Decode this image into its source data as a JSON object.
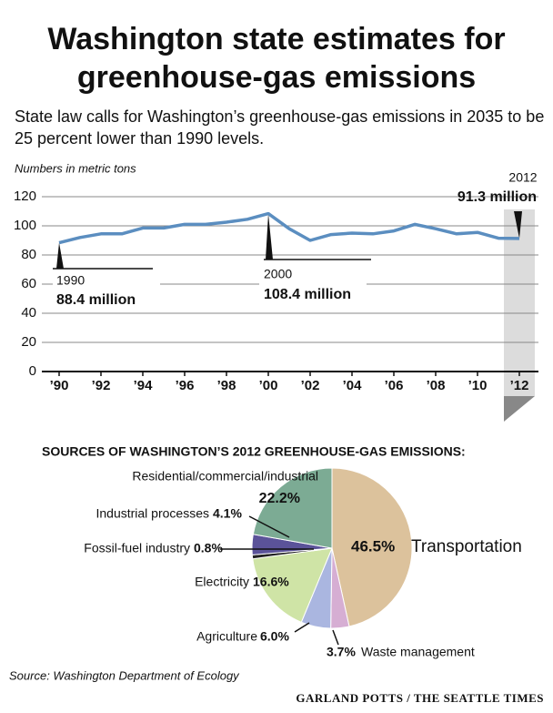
{
  "title": "Washington state estimates for greenhouse-gas emissions",
  "subtitle": "State law calls for Washington’s greenhouse-gas emissions in 2035 to be 25 percent lower than 1990 levels.",
  "source": "Source: Washington Department of Ecology",
  "credit": "GARLAND POTTS / THE SEATTLE TIMES",
  "chart_data": [
    {
      "type": "line",
      "y_axis_label": "Numbers in metric tons",
      "x": [
        1990,
        1991,
        1992,
        1993,
        1994,
        1995,
        1996,
        1997,
        1998,
        1999,
        2000,
        2001,
        2002,
        2003,
        2004,
        2005,
        2006,
        2007,
        2008,
        2009,
        2010,
        2011,
        2012
      ],
      "values": [
        88.4,
        92,
        94.5,
        94.5,
        98.5,
        98.5,
        101,
        101,
        102.5,
        104.5,
        108.4,
        98,
        90,
        94,
        95,
        94.5,
        96.5,
        101,
        98,
        94.5,
        95.5,
        91.5,
        91.3
      ],
      "color": "#5b8ec0",
      "xlim": [
        1990,
        2012
      ],
      "xticks": [
        {
          "value": 1990,
          "label": "’90"
        },
        {
          "value": 1992,
          "label": "’92"
        },
        {
          "value": 1994,
          "label": "’94"
        },
        {
          "value": 1996,
          "label": "’96"
        },
        {
          "value": 1998,
          "label": "’98"
        },
        {
          "value": 2000,
          "label": "’00"
        },
        {
          "value": 2002,
          "label": "’02"
        },
        {
          "value": 2004,
          "label": "’04"
        },
        {
          "value": 2006,
          "label": "’06"
        },
        {
          "value": 2008,
          "label": "’08"
        },
        {
          "value": 2010,
          "label": "’10"
        },
        {
          "value": 2012,
          "label": "’12"
        }
      ],
      "ylim": [
        0,
        120
      ],
      "yticks": [
        0,
        20,
        40,
        60,
        80,
        100,
        120
      ],
      "grid": true,
      "annotations": [
        {
          "x": 1990,
          "value": 88.4,
          "label": "88.4 million"
        },
        {
          "x": 2000,
          "value": 108.4,
          "label": "108.4 million"
        },
        {
          "x": 2012,
          "value": 91.3,
          "label": "91.3 million"
        }
      ]
    },
    {
      "type": "pie",
      "title": "SOURCES OF WASHINGTON’S 2012 GREENHOUSE-GAS EMISSIONS:",
      "categories": [
        "Transportation",
        "Waste management",
        "Agriculture",
        "Electricity",
        "Fossil-fuel industry",
        "Industrial processes",
        "Residential/commercial/industrial"
      ],
      "values": [
        46.5,
        3.7,
        6.0,
        16.6,
        0.8,
        4.1,
        22.2
      ],
      "value_labels": [
        "46.5%",
        "3.7%",
        "6.0%",
        "16.6%",
        "0.8%",
        "4.1%",
        "22.2%"
      ],
      "colors": [
        "#dcc29c",
        "#d6aed3",
        "#aab6e0",
        "#cfe4a6",
        "#222222",
        "#5b5399",
        "#7cab94"
      ]
    }
  ]
}
